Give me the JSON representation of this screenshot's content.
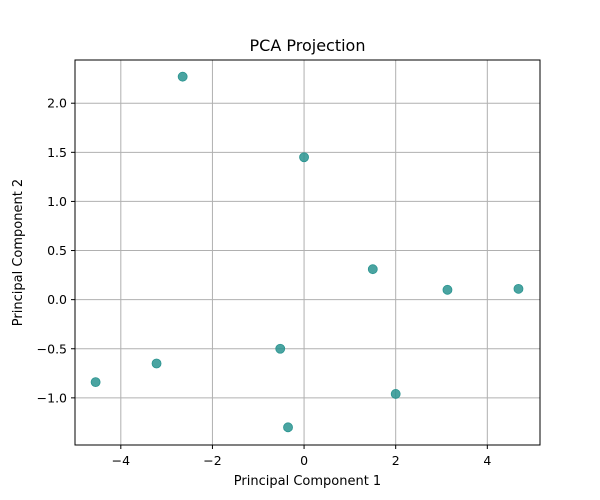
{
  "chart_data": {
    "type": "scatter",
    "title": "PCA Projection",
    "xlabel": "Principal Component 1",
    "ylabel": "Principal Component 2",
    "xlim": [
      -5.0,
      5.15
    ],
    "ylim": [
      -1.48,
      2.44
    ],
    "xticks": [
      -4,
      -2,
      0,
      2,
      4
    ],
    "xtick_labels": [
      "−4",
      "−2",
      "0",
      "2",
      "4"
    ],
    "yticks": [
      -1.0,
      -0.5,
      0.0,
      0.5,
      1.0,
      1.5,
      2.0
    ],
    "ytick_labels": [
      "−1.0",
      "−0.5",
      "0.0",
      "0.5",
      "1.0",
      "1.5",
      "2.0"
    ],
    "grid": true,
    "marker_color": "#2a9490",
    "points": [
      {
        "x": -2.65,
        "y": 2.27
      },
      {
        "x": 0.0,
        "y": 1.45
      },
      {
        "x": 1.5,
        "y": 0.31
      },
      {
        "x": 3.13,
        "y": 0.1
      },
      {
        "x": 4.68,
        "y": 0.11
      },
      {
        "x": -0.52,
        "y": -0.5
      },
      {
        "x": -3.22,
        "y": -0.65
      },
      {
        "x": -4.55,
        "y": -0.84
      },
      {
        "x": 2.0,
        "y": -0.96
      },
      {
        "x": -0.35,
        "y": -1.3
      }
    ]
  }
}
